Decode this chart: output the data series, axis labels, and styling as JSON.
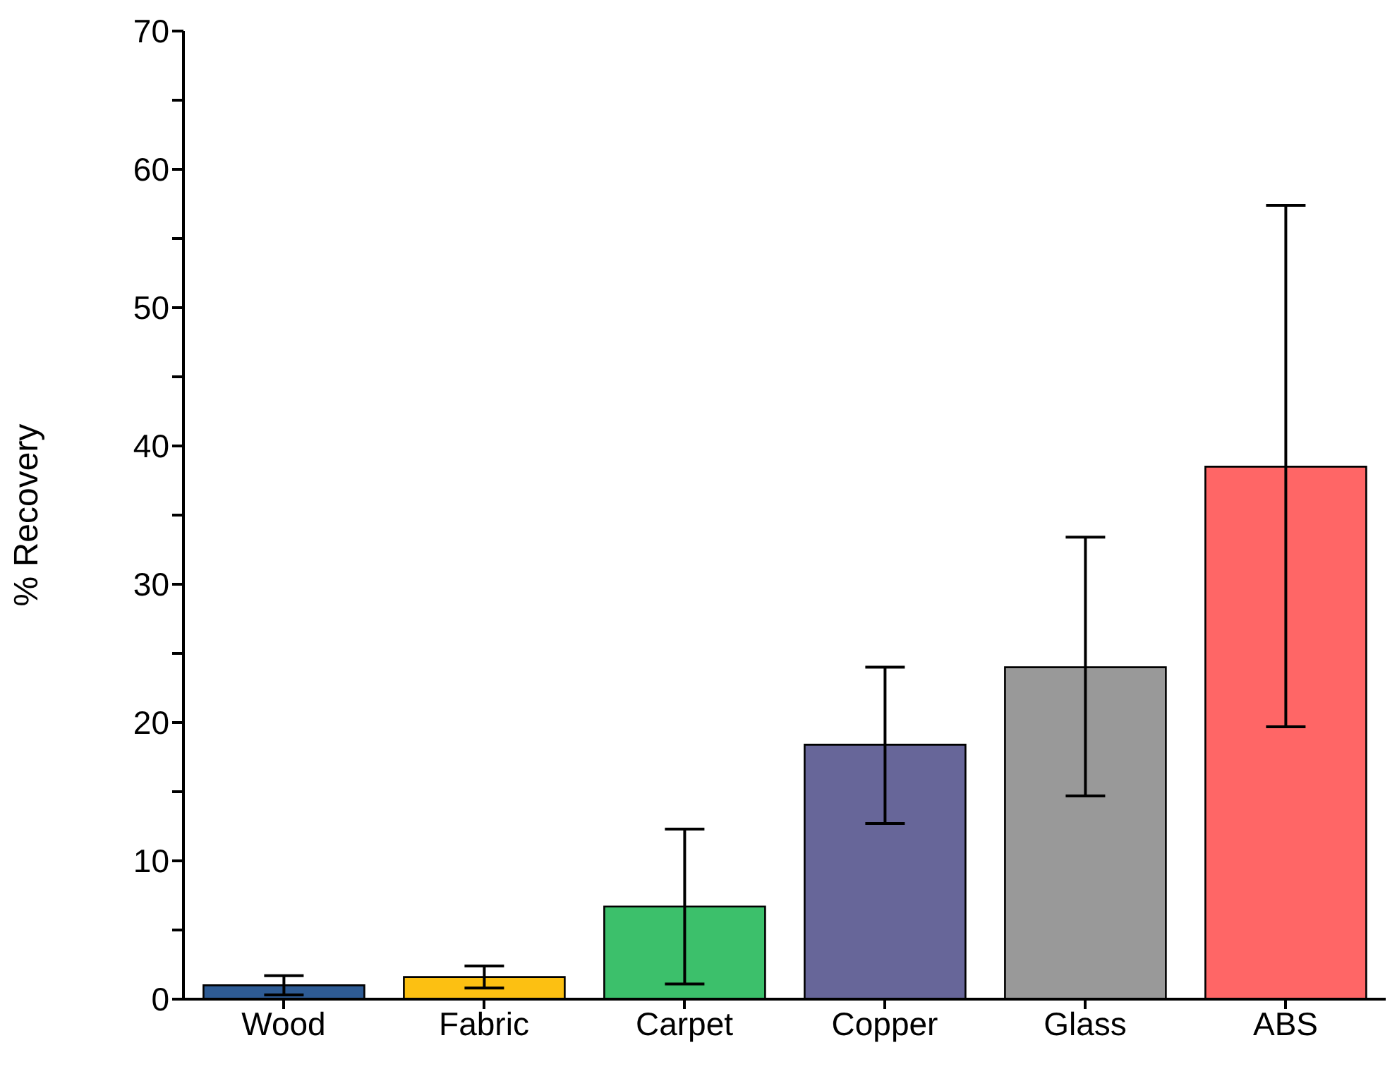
{
  "chart_data": {
    "type": "bar",
    "ylabel": "% Recovery",
    "categories": [
      "Wood",
      "Fabric",
      "Carpet",
      "Copper",
      "Glass",
      "ABS"
    ],
    "values": [
      1.0,
      1.6,
      6.7,
      18.4,
      24.0,
      38.5
    ],
    "colors": [
      "#2e5b94",
      "#fcc012",
      "#3cc06b",
      "#676699",
      "#999999",
      "#ff6666"
    ],
    "errors": [
      [
        0.3,
        1.7
      ],
      [
        0.8,
        2.4
      ],
      [
        1.1,
        12.3
      ],
      [
        12.7,
        24.0
      ],
      [
        14.7,
        33.4
      ],
      [
        19.7,
        57.4
      ]
    ],
    "ylim": [
      0,
      70
    ],
    "yticks": [
      0,
      {
        "value": 5,
        "label": null
      },
      10,
      {
        "value": 15,
        "label": null
      },
      20,
      {
        "value": 25,
        "label": null
      },
      30,
      {
        "value": 35,
        "label": null
      },
      40,
      {
        "value": 45,
        "label": null
      },
      50,
      {
        "value": 55,
        "label": null
      },
      60,
      {
        "value": 65,
        "label": null
      },
      70
    ],
    "grid": false
  }
}
